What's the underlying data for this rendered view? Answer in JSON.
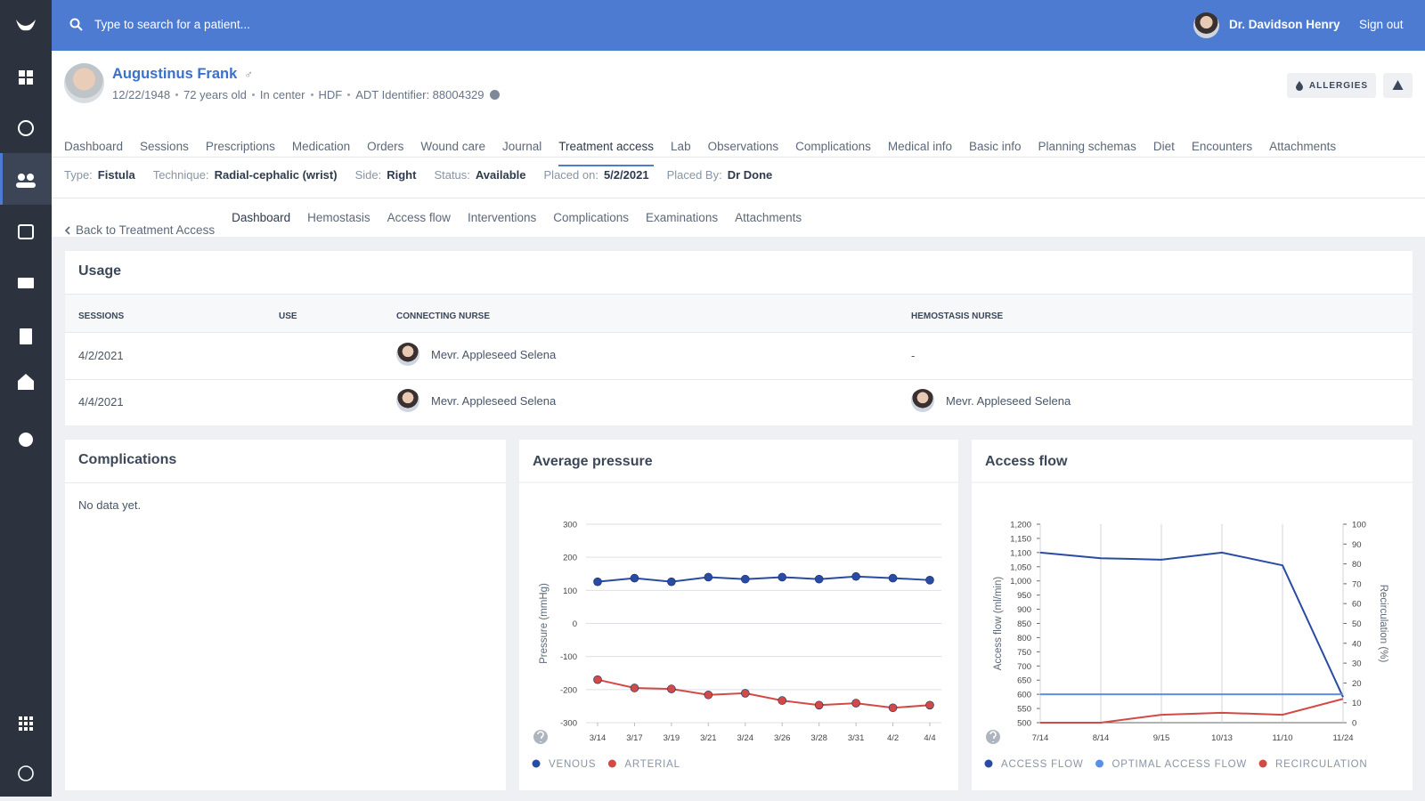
{
  "header": {
    "search_placeholder": "Type to search for a patient...",
    "user": "Dr. Davidson Henry",
    "sign_out": "Sign out"
  },
  "patient": {
    "name": "Augustinus Frank",
    "gender": "♂",
    "details": [
      "12/22/1948",
      "72 years old",
      "In center",
      "HDF",
      "ADT Identifier: 88004329"
    ],
    "allergies": "ALLERGIES"
  },
  "tabs": {
    "items": [
      "Dashboard",
      "Sessions",
      "Prescriptions",
      "Medication",
      "Orders",
      "Wound care",
      "Journal",
      "Treatment access",
      "Lab",
      "Observations",
      "Complications",
      "Medical info",
      "Basic info",
      "Planning schemas",
      "Diet",
      "Encounters",
      "Attachments"
    ],
    "active": 7
  },
  "access": [
    {
      "label": "Type:",
      "value": "Fistula"
    },
    {
      "label": "Technique:",
      "value": "Radial-cephalic (wrist)"
    },
    {
      "label": "Side:",
      "value": "Right"
    },
    {
      "label": "Status:",
      "value": "Available"
    },
    {
      "label": "Placed on:",
      "value": "5/2/2021"
    },
    {
      "label": "Placed By:",
      "value": "Dr Done"
    }
  ],
  "subtabs": {
    "back": "Back to Treatment Access",
    "items": [
      "Dashboard",
      "Hemostasis",
      "Access flow",
      "Interventions",
      "Complications",
      "Examinations",
      "Attachments"
    ],
    "active": 0
  },
  "usage": {
    "title": "Usage",
    "columns": [
      "SESSIONS",
      "USE",
      "CONNECTING NURSE",
      "HEMOSTASIS NURSE"
    ],
    "rows": [
      {
        "session": "4/2/2021",
        "connecting_nurse": "Mevr. Appleseed Selena",
        "hemostasis_nurse": "-"
      },
      {
        "session": "4/4/2021",
        "connecting_nurse": "Mevr. Appleseed Selena",
        "hemostasis_nurse": "Mevr. Appleseed Selena"
      }
    ]
  },
  "complications": {
    "title": "Complications",
    "empty": "No data yet."
  },
  "chart_data": [
    {
      "type": "line",
      "title": "Average pressure",
      "ylabel": "Pressure (mmHg)",
      "categories": [
        "3/14",
        "3/17",
        "3/19",
        "3/21",
        "3/24",
        "3/26",
        "3/28",
        "3/31",
        "4/2",
        "4/4"
      ],
      "series": [
        {
          "name": "VENOUS",
          "color": "#2a4ba3",
          "values": [
            126,
            137,
            126,
            140,
            134,
            140,
            134,
            142,
            137,
            131
          ]
        },
        {
          "name": "ARTERIAL",
          "color": "#d24a46",
          "values": [
            -170,
            -195,
            -198,
            -216,
            -211,
            -233,
            -247,
            -241,
            -255,
            -247
          ]
        }
      ],
      "ylim": [
        -300,
        300
      ],
      "yticks": [
        -300,
        -200,
        -100,
        0,
        100,
        200,
        300
      ],
      "grid": "horizontal",
      "markers": true
    },
    {
      "type": "line",
      "title": "Access flow",
      "ylabel": "Access flow (ml/min)",
      "y2label": "Recirculation (%)",
      "categories": [
        "7/14",
        "8/14",
        "9/15",
        "10/13",
        "11/10",
        "11/24"
      ],
      "series": [
        {
          "name": "ACCESS FLOW",
          "color": "#2a4ba3",
          "values": [
            1100,
            1080,
            1075,
            1100,
            1055,
            590
          ]
        },
        {
          "name": "OPTIMAL ACCESS FLOW",
          "color": "#5b8ee6",
          "values": [
            600,
            600,
            600,
            600,
            600,
            600
          ]
        },
        {
          "name": "RECIRCULATION",
          "color": "#d24a46",
          "axis": "y2",
          "values": [
            0,
            0,
            4,
            5,
            4,
            12
          ]
        }
      ],
      "ylim": [
        500,
        1200
      ],
      "yticks": [
        500,
        550,
        600,
        650,
        700,
        750,
        800,
        850,
        900,
        950,
        {
          "value": 1000,
          "label": "1,000"
        },
        {
          "value": 1050,
          "label": "1,050"
        },
        {
          "value": 1100,
          "label": "1,100"
        },
        {
          "value": 1150,
          "label": "1,150"
        },
        {
          "value": 1200,
          "label": "1,200"
        }
      ],
      "y2lim": [
        0,
        100
      ],
      "y2ticks": [
        0,
        10,
        20,
        30,
        40,
        50,
        60,
        70,
        80,
        90,
        100
      ],
      "grid": "vertical",
      "markers": false
    }
  ]
}
